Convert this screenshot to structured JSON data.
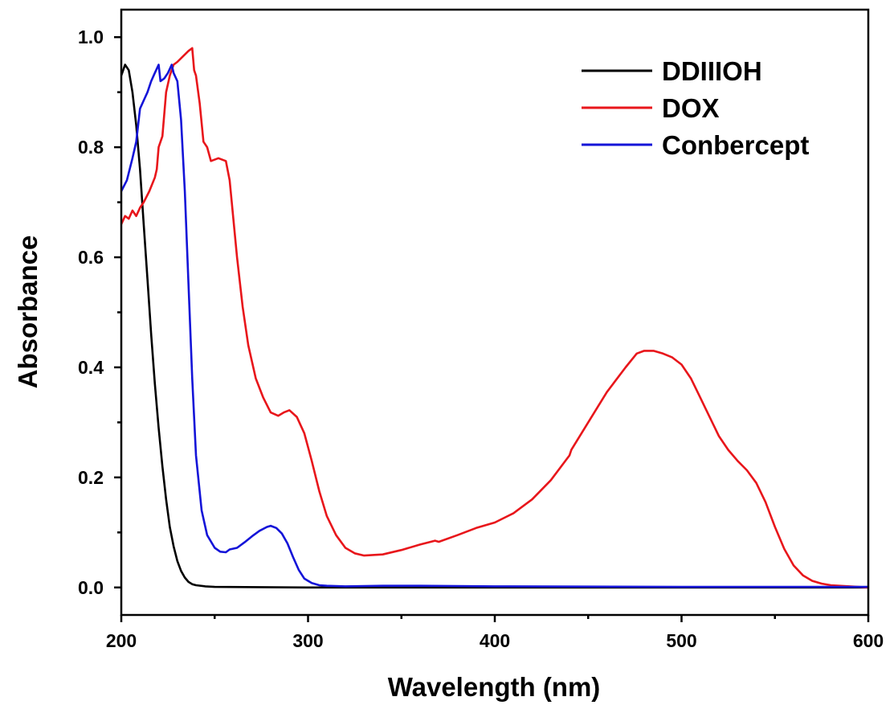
{
  "chart_data": {
    "type": "line",
    "xlabel": "Wavelength (nm)",
    "ylabel": "Absorbance",
    "xlim": [
      200,
      600
    ],
    "ylim": [
      -0.05,
      1.05
    ],
    "x_ticks": [
      "200",
      "300",
      "400",
      "500",
      "600"
    ],
    "y_ticks": [
      "0.0",
      "0.2",
      "0.4",
      "0.6",
      "0.8",
      "1.0"
    ],
    "x_tick_values": [
      200,
      300,
      400,
      500,
      600
    ],
    "y_tick_values": [
      0.0,
      0.2,
      0.4,
      0.6,
      0.8,
      1.0
    ],
    "x_minor_step": 50,
    "y_minor_step": 0.1,
    "grid": false,
    "legend_position": "top-right",
    "series": [
      {
        "name": "DDIIIOH",
        "color": "#000000",
        "points": [
          [
            200,
            0.93
          ],
          [
            202,
            0.95
          ],
          [
            204,
            0.94
          ],
          [
            206,
            0.9
          ],
          [
            208,
            0.84
          ],
          [
            210,
            0.76
          ],
          [
            212,
            0.66
          ],
          [
            214,
            0.56
          ],
          [
            216,
            0.46
          ],
          [
            218,
            0.37
          ],
          [
            220,
            0.29
          ],
          [
            222,
            0.22
          ],
          [
            224,
            0.16
          ],
          [
            226,
            0.11
          ],
          [
            228,
            0.075
          ],
          [
            230,
            0.048
          ],
          [
            232,
            0.03
          ],
          [
            234,
            0.018
          ],
          [
            236,
            0.01
          ],
          [
            238,
            0.006
          ],
          [
            240,
            0.004
          ],
          [
            245,
            0.002
          ],
          [
            250,
            0.001
          ],
          [
            300,
            0.0
          ],
          [
            400,
            0.0
          ],
          [
            500,
            0.0
          ],
          [
            600,
            0.0
          ]
        ]
      },
      {
        "name": "DOX",
        "color": "#e8161b",
        "points": [
          [
            200,
            0.66
          ],
          [
            202,
            0.675
          ],
          [
            204,
            0.67
          ],
          [
            206,
            0.685
          ],
          [
            208,
            0.675
          ],
          [
            210,
            0.69
          ],
          [
            212,
            0.7
          ],
          [
            215,
            0.72
          ],
          [
            218,
            0.745
          ],
          [
            219,
            0.76
          ],
          [
            220,
            0.8
          ],
          [
            222,
            0.82
          ],
          [
            224,
            0.9
          ],
          [
            226,
            0.93
          ],
          [
            228,
            0.95
          ],
          [
            230,
            0.955
          ],
          [
            233,
            0.965
          ],
          [
            236,
            0.975
          ],
          [
            238,
            0.98
          ],
          [
            239,
            0.94
          ],
          [
            240,
            0.93
          ],
          [
            242,
            0.88
          ],
          [
            244,
            0.81
          ],
          [
            246,
            0.8
          ],
          [
            248,
            0.775
          ],
          [
            252,
            0.78
          ],
          [
            256,
            0.775
          ],
          [
            258,
            0.74
          ],
          [
            260,
            0.67
          ],
          [
            262,
            0.6
          ],
          [
            265,
            0.51
          ],
          [
            268,
            0.44
          ],
          [
            272,
            0.38
          ],
          [
            276,
            0.345
          ],
          [
            280,
            0.318
          ],
          [
            284,
            0.312
          ],
          [
            287,
            0.318
          ],
          [
            290,
            0.322
          ],
          [
            294,
            0.31
          ],
          [
            298,
            0.28
          ],
          [
            302,
            0.23
          ],
          [
            306,
            0.175
          ],
          [
            310,
            0.13
          ],
          [
            315,
            0.095
          ],
          [
            320,
            0.072
          ],
          [
            325,
            0.062
          ],
          [
            330,
            0.058
          ],
          [
            340,
            0.06
          ],
          [
            350,
            0.068
          ],
          [
            360,
            0.078
          ],
          [
            368,
            0.085
          ],
          [
            370,
            0.083
          ],
          [
            380,
            0.095
          ],
          [
            390,
            0.108
          ],
          [
            400,
            0.118
          ],
          [
            410,
            0.135
          ],
          [
            420,
            0.16
          ],
          [
            430,
            0.195
          ],
          [
            440,
            0.24
          ],
          [
            441,
            0.25
          ],
          [
            450,
            0.3
          ],
          [
            460,
            0.355
          ],
          [
            470,
            0.4
          ],
          [
            476,
            0.425
          ],
          [
            480,
            0.43
          ],
          [
            485,
            0.43
          ],
          [
            490,
            0.425
          ],
          [
            495,
            0.418
          ],
          [
            500,
            0.405
          ],
          [
            505,
            0.38
          ],
          [
            510,
            0.345
          ],
          [
            515,
            0.31
          ],
          [
            520,
            0.275
          ],
          [
            525,
            0.25
          ],
          [
            530,
            0.23
          ],
          [
            535,
            0.213
          ],
          [
            540,
            0.19
          ],
          [
            545,
            0.155
          ],
          [
            550,
            0.11
          ],
          [
            555,
            0.07
          ],
          [
            560,
            0.04
          ],
          [
            565,
            0.022
          ],
          [
            570,
            0.012
          ],
          [
            575,
            0.007
          ],
          [
            580,
            0.004
          ],
          [
            590,
            0.002
          ],
          [
            600,
            0.0
          ]
        ]
      },
      {
        "name": "Conbercept",
        "color": "#1414d8",
        "points": [
          [
            200,
            0.72
          ],
          [
            203,
            0.74
          ],
          [
            206,
            0.78
          ],
          [
            208,
            0.81
          ],
          [
            210,
            0.87
          ],
          [
            212,
            0.885
          ],
          [
            214,
            0.9
          ],
          [
            216,
            0.92
          ],
          [
            218,
            0.935
          ],
          [
            220,
            0.95
          ],
          [
            221,
            0.92
          ],
          [
            223,
            0.925
          ],
          [
            225,
            0.935
          ],
          [
            227,
            0.95
          ],
          [
            228,
            0.935
          ],
          [
            230,
            0.92
          ],
          [
            232,
            0.85
          ],
          [
            234,
            0.72
          ],
          [
            236,
            0.55
          ],
          [
            238,
            0.38
          ],
          [
            240,
            0.24
          ],
          [
            243,
            0.14
          ],
          [
            246,
            0.095
          ],
          [
            250,
            0.072
          ],
          [
            253,
            0.065
          ],
          [
            256,
            0.064
          ],
          [
            258,
            0.069
          ],
          [
            262,
            0.072
          ],
          [
            266,
            0.082
          ],
          [
            270,
            0.093
          ],
          [
            274,
            0.103
          ],
          [
            278,
            0.11
          ],
          [
            280,
            0.112
          ],
          [
            283,
            0.108
          ],
          [
            286,
            0.098
          ],
          [
            289,
            0.08
          ],
          [
            292,
            0.055
          ],
          [
            295,
            0.032
          ],
          [
            298,
            0.016
          ],
          [
            302,
            0.008
          ],
          [
            306,
            0.004
          ],
          [
            310,
            0.003
          ],
          [
            320,
            0.002
          ],
          [
            340,
            0.003
          ],
          [
            360,
            0.003
          ],
          [
            400,
            0.002
          ],
          [
            500,
            0.001
          ],
          [
            600,
            0.001
          ]
        ]
      }
    ]
  }
}
